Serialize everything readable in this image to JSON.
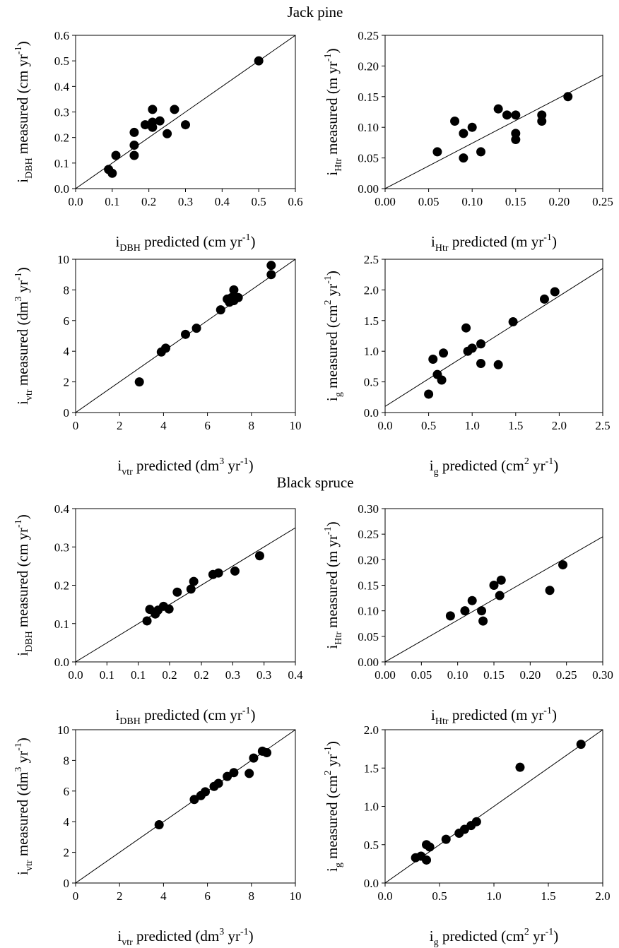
{
  "groups": [
    {
      "title": "Jack pine"
    },
    {
      "title": "Black spruce"
    }
  ],
  "chart_data": [
    {
      "type": "scatter",
      "group": "Jack pine",
      "xlabel": {
        "base": "i",
        "sub": "DBH",
        "text": " predicted (cm yr",
        "sup": "-1",
        "end": ")"
      },
      "ylabel": {
        "base": "i",
        "sub": "DBH",
        "text": " measured (cm yr",
        "sup": "-1",
        "end": ")"
      },
      "xlim": [
        0,
        0.6
      ],
      "ylim": [
        0,
        0.6
      ],
      "xticks": [
        "0.0",
        "0.1",
        "0.2",
        "0.3",
        "0.4",
        "0.5",
        "0.6"
      ],
      "yticks": [
        "0.0",
        "0.1",
        "0.2",
        "0.3",
        "0.4",
        "0.5",
        "0.6"
      ],
      "line": [
        [
          0,
          0
        ],
        [
          0.6,
          0.6
        ]
      ],
      "points": [
        [
          0.09,
          0.075
        ],
        [
          0.1,
          0.06
        ],
        [
          0.11,
          0.13
        ],
        [
          0.16,
          0.22
        ],
        [
          0.16,
          0.17
        ],
        [
          0.16,
          0.13
        ],
        [
          0.19,
          0.25
        ],
        [
          0.21,
          0.31
        ],
        [
          0.21,
          0.26
        ],
        [
          0.21,
          0.24
        ],
        [
          0.23,
          0.265
        ],
        [
          0.25,
          0.215
        ],
        [
          0.27,
          0.31
        ],
        [
          0.3,
          0.25
        ],
        [
          0.5,
          0.5
        ]
      ]
    },
    {
      "type": "scatter",
      "group": "Jack pine",
      "xlabel": {
        "base": "i",
        "sub": "Htr",
        "text": " predicted (m yr",
        "sup": "-1",
        "end": ")"
      },
      "ylabel": {
        "base": "i",
        "sub": "Htr",
        "text": " measured (m yr",
        "sup": "-1",
        "end": ")"
      },
      "xlim": [
        0,
        0.25
      ],
      "ylim": [
        0,
        0.25
      ],
      "xticks": [
        "0.00",
        "0.05",
        "0.10",
        "0.15",
        "0.20",
        "0.25"
      ],
      "yticks": [
        "0.00",
        "0.05",
        "0.10",
        "0.15",
        "0.20",
        "0.25"
      ],
      "line": [
        [
          0,
          0
        ],
        [
          0.25,
          0.185
        ]
      ],
      "points": [
        [
          0.06,
          0.06
        ],
        [
          0.08,
          0.11
        ],
        [
          0.09,
          0.09
        ],
        [
          0.09,
          0.05
        ],
        [
          0.1,
          0.1
        ],
        [
          0.11,
          0.06
        ],
        [
          0.13,
          0.13
        ],
        [
          0.14,
          0.12
        ],
        [
          0.15,
          0.12
        ],
        [
          0.15,
          0.09
        ],
        [
          0.15,
          0.08
        ],
        [
          0.18,
          0.12
        ],
        [
          0.18,
          0.11
        ],
        [
          0.21,
          0.15
        ]
      ]
    },
    {
      "type": "scatter",
      "group": "Jack pine",
      "xlabel": {
        "base": "i",
        "sub": "vtr",
        "text": " predicted (dm",
        "sup": "3",
        "text2": " yr",
        "sup2": "-1",
        "end": ")"
      },
      "ylabel": {
        "base": "i",
        "sub": "vtr",
        "text": " measured (dm",
        "sup": "3",
        "text2": " yr",
        "sup2": "-1",
        "end": ")"
      },
      "xlim": [
        0,
        10
      ],
      "ylim": [
        0,
        10
      ],
      "xticks": [
        "0",
        "2",
        "4",
        "6",
        "8",
        "10"
      ],
      "yticks": [
        "0",
        "2",
        "4",
        "6",
        "8",
        "10"
      ],
      "line": [
        [
          0,
          0
        ],
        [
          10,
          10
        ]
      ],
      "points": [
        [
          2.9,
          2.0
        ],
        [
          3.9,
          3.95
        ],
        [
          4.1,
          4.2
        ],
        [
          5.0,
          5.1
        ],
        [
          5.5,
          5.5
        ],
        [
          6.6,
          6.7
        ],
        [
          6.9,
          7.4
        ],
        [
          7.0,
          7.2
        ],
        [
          7.1,
          7.5
        ],
        [
          7.2,
          7.3
        ],
        [
          7.2,
          8.0
        ],
        [
          7.4,
          7.5
        ],
        [
          8.9,
          9.6
        ],
        [
          8.9,
          9.0
        ]
      ]
    },
    {
      "type": "scatter",
      "group": "Jack pine",
      "xlabel": {
        "base": "i",
        "sub": "g",
        "text": " predicted (cm",
        "sup": "2",
        "text2": " yr",
        "sup2": "-1",
        "end": ")"
      },
      "ylabel": {
        "base": "i",
        "sub": "g",
        "text": " measured (cm",
        "sup": "2",
        "text2": " yr",
        "sup2": "-1",
        "end": ")"
      },
      "xlim": [
        0,
        2.5
      ],
      "ylim": [
        0,
        2.5
      ],
      "xticks": [
        "0.0",
        "0.5",
        "1.0",
        "1.5",
        "2.0",
        "2.5"
      ],
      "yticks": [
        "0.0",
        "0.5",
        "1.0",
        "1.5",
        "2.0",
        "2.5"
      ],
      "line": [
        [
          0,
          0.1
        ],
        [
          2.5,
          2.35
        ]
      ],
      "points": [
        [
          0.5,
          0.3
        ],
        [
          0.55,
          0.87
        ],
        [
          0.6,
          0.62
        ],
        [
          0.65,
          0.53
        ],
        [
          0.67,
          0.97
        ],
        [
          0.93,
          1.38
        ],
        [
          0.95,
          1.0
        ],
        [
          1.0,
          1.05
        ],
        [
          1.1,
          1.12
        ],
        [
          1.1,
          0.8
        ],
        [
          1.3,
          0.78
        ],
        [
          1.47,
          1.48
        ],
        [
          1.83,
          1.85
        ],
        [
          1.95,
          1.97
        ]
      ]
    },
    {
      "type": "scatter",
      "group": "Black spruce",
      "xlabel": {
        "base": "i",
        "sub": "DBH",
        "text": " predicted (cm yr",
        "sup": "-1",
        "end": ")"
      },
      "ylabel": {
        "base": "i",
        "sub": "DBH",
        "text": " measured (cm yr",
        "sup": "-1",
        "end": ")"
      },
      "xlim": [
        0,
        0.4
      ],
      "ylim": [
        0,
        0.4
      ],
      "xticks": [
        "0.0",
        "0.1",
        "0.1",
        "0.2",
        "0.2",
        "0.3",
        "0.3",
        "0.4"
      ],
      "xtick_values": [
        0,
        0.057,
        0.114,
        0.171,
        0.229,
        0.286,
        0.343,
        0.4
      ],
      "yticks": [
        "0.0",
        "0.1",
        "0.2",
        "0.3",
        "0.4"
      ],
      "line": [
        [
          0,
          0
        ],
        [
          0.4,
          0.35
        ]
      ],
      "points": [
        [
          0.13,
          0.107
        ],
        [
          0.135,
          0.137
        ],
        [
          0.145,
          0.125
        ],
        [
          0.15,
          0.135
        ],
        [
          0.16,
          0.145
        ],
        [
          0.17,
          0.138
        ],
        [
          0.185,
          0.182
        ],
        [
          0.21,
          0.19
        ],
        [
          0.215,
          0.21
        ],
        [
          0.25,
          0.228
        ],
        [
          0.26,
          0.232
        ],
        [
          0.29,
          0.237
        ],
        [
          0.335,
          0.277
        ]
      ]
    },
    {
      "type": "scatter",
      "group": "Black spruce",
      "xlabel": {
        "base": "i",
        "sub": "Htr",
        "text": " predicted (m yr",
        "sup": "-1",
        "end": ")"
      },
      "ylabel": {
        "base": "i",
        "sub": "Htr",
        "text": " measured (m yr",
        "sup": "-1",
        "end": ")"
      },
      "xlim": [
        0,
        0.3
      ],
      "ylim": [
        0,
        0.3
      ],
      "xticks": [
        "0.00",
        "0.05",
        "0.10",
        "0.15",
        "0.20",
        "0.25",
        "0.30"
      ],
      "yticks": [
        "0.00",
        "0.05",
        "0.10",
        "0.15",
        "0.20",
        "0.25",
        "0.30"
      ],
      "line": [
        [
          0,
          0
        ],
        [
          0.3,
          0.245
        ]
      ],
      "points": [
        [
          0.09,
          0.09
        ],
        [
          0.11,
          0.1
        ],
        [
          0.12,
          0.12
        ],
        [
          0.133,
          0.1
        ],
        [
          0.135,
          0.08
        ],
        [
          0.15,
          0.15
        ],
        [
          0.158,
          0.13
        ],
        [
          0.16,
          0.16
        ],
        [
          0.227,
          0.14
        ],
        [
          0.245,
          0.19
        ]
      ]
    },
    {
      "type": "scatter",
      "group": "Black spruce",
      "xlabel": {
        "base": "i",
        "sub": "vtr",
        "text": " predicted (dm",
        "sup": "3",
        "text2": " yr",
        "sup2": "-1",
        "end": ")"
      },
      "ylabel": {
        "base": "i",
        "sub": "vtr",
        "text": " measured (dm",
        "sup": "3",
        "text2": " yr",
        "sup2": "-1",
        "end": ")"
      },
      "xlim": [
        0,
        10
      ],
      "ylim": [
        0,
        10
      ],
      "xticks": [
        "0",
        "2",
        "4",
        "6",
        "8",
        "10"
      ],
      "yticks": [
        "0",
        "2",
        "4",
        "6",
        "8",
        "10"
      ],
      "line": [
        [
          0,
          0
        ],
        [
          10,
          10
        ]
      ],
      "points": [
        [
          3.8,
          3.8
        ],
        [
          5.4,
          5.45
        ],
        [
          5.7,
          5.7
        ],
        [
          5.9,
          5.95
        ],
        [
          6.3,
          6.3
        ],
        [
          6.5,
          6.5
        ],
        [
          6.9,
          6.95
        ],
        [
          7.2,
          7.2
        ],
        [
          7.9,
          7.15
        ],
        [
          8.1,
          8.15
        ],
        [
          8.5,
          8.6
        ],
        [
          8.7,
          8.5
        ]
      ]
    },
    {
      "type": "scatter",
      "group": "Black spruce",
      "xlabel": {
        "base": "i",
        "sub": "g",
        "text": " predicted (cm",
        "sup": "2",
        "text2": " yr",
        "sup2": "-1",
        "end": ")"
      },
      "ylabel": {
        "base": "i",
        "sub": "g",
        "text": " measured (cm",
        "sup": "2",
        "text2": " yr",
        "sup2": "-1",
        "end": ")"
      },
      "xlim": [
        0,
        2.0
      ],
      "ylim": [
        0,
        2.0
      ],
      "xticks": [
        "0.0",
        "0.5",
        "1.0",
        "1.5",
        "2.0"
      ],
      "yticks": [
        "0.0",
        "0.5",
        "1.0",
        "1.5",
        "2.0"
      ],
      "line": [
        [
          0,
          0
        ],
        [
          2.0,
          2.0
        ]
      ],
      "points": [
        [
          0.28,
          0.33
        ],
        [
          0.33,
          0.35
        ],
        [
          0.38,
          0.3
        ],
        [
          0.38,
          0.5
        ],
        [
          0.41,
          0.47
        ],
        [
          0.56,
          0.57
        ],
        [
          0.68,
          0.65
        ],
        [
          0.73,
          0.7
        ],
        [
          0.79,
          0.75
        ],
        [
          0.84,
          0.8
        ],
        [
          1.24,
          1.51
        ],
        [
          1.8,
          1.81
        ]
      ]
    }
  ]
}
